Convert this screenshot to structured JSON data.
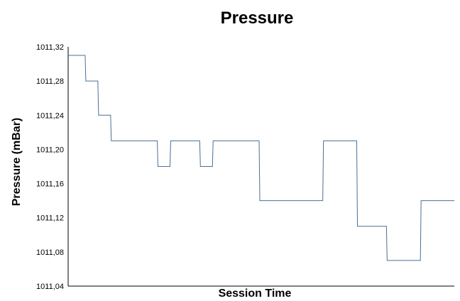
{
  "chart_data": {
    "type": "line",
    "title": "Pressure",
    "xlabel": "Session Time",
    "ylabel": "Pressure (mBar)",
    "ylim": [
      1011.04,
      1011.32
    ],
    "y_ticks": [
      "1011,04",
      "1011,08",
      "1011,12",
      "1011,16",
      "1011,20",
      "1011,24",
      "1011,28",
      "1011,32"
    ],
    "y_tick_values": [
      1011.04,
      1011.08,
      1011.12,
      1011.16,
      1011.2,
      1011.24,
      1011.28,
      1011.32
    ],
    "grid": false,
    "legend": "none",
    "x_ticks_shown": false,
    "line_style": "step",
    "series": [
      {
        "color": "#4a6f96",
        "values": [
          1011.31,
          1011.31,
          1011.31,
          1011.31,
          1011.28,
          1011.28,
          1011.28,
          1011.24,
          1011.24,
          1011.24,
          1011.21,
          1011.21,
          1011.21,
          1011.21,
          1011.21,
          1011.21,
          1011.21,
          1011.21,
          1011.21,
          1011.21,
          1011.21,
          1011.18,
          1011.18,
          1011.18,
          1011.21,
          1011.21,
          1011.21,
          1011.21,
          1011.21,
          1011.21,
          1011.21,
          1011.18,
          1011.18,
          1011.18,
          1011.21,
          1011.21,
          1011.21,
          1011.21,
          1011.21,
          1011.21,
          1011.21,
          1011.21,
          1011.21,
          1011.21,
          1011.21,
          1011.14,
          1011.14,
          1011.14,
          1011.14,
          1011.14,
          1011.14,
          1011.14,
          1011.14,
          1011.14,
          1011.14,
          1011.14,
          1011.14,
          1011.14,
          1011.14,
          1011.14,
          1011.21,
          1011.21,
          1011.21,
          1011.21,
          1011.21,
          1011.21,
          1011.21,
          1011.21,
          1011.11,
          1011.11,
          1011.11,
          1011.11,
          1011.11,
          1011.11,
          1011.11,
          1011.07,
          1011.07,
          1011.07,
          1011.07,
          1011.07,
          1011.07,
          1011.07,
          1011.07,
          1011.14,
          1011.14,
          1011.14,
          1011.14,
          1011.14,
          1011.14,
          1011.14,
          1011.14
        ]
      }
    ]
  }
}
